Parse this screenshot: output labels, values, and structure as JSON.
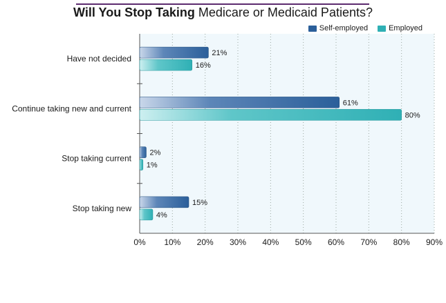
{
  "title": {
    "bold": "Will You Stop Taking",
    "rest": " Medicare or Medicaid Patients?"
  },
  "colors": {
    "self_employed": "#2b5f9a",
    "employed": "#2fb0b5",
    "plot_background": "#f0f8fc",
    "grid": "#9aa7a0"
  },
  "chart_data": {
    "type": "bar",
    "orientation": "horizontal",
    "title": "Will You Stop Taking Medicare or Medicaid Patients?",
    "categories": [
      "Have not decided",
      "Continue taking new and current",
      "Stop taking current",
      "Stop taking new"
    ],
    "series": [
      {
        "name": "Self-employed",
        "values": [
          21,
          61,
          2,
          15
        ],
        "labels": [
          "21%",
          "61%",
          "2%",
          "15%"
        ]
      },
      {
        "name": "Employed",
        "values": [
          16,
          80,
          1,
          4
        ],
        "labels": [
          "16%",
          "80%",
          "1%",
          "4%"
        ]
      }
    ],
    "xlim": [
      0,
      90
    ],
    "xticks": [
      "0%",
      "10%",
      "20%",
      "30%",
      "40%",
      "50%",
      "60%",
      "70%",
      "80%",
      "90%"
    ],
    "grid": "vertical dotted",
    "legend_position": "top-right"
  }
}
